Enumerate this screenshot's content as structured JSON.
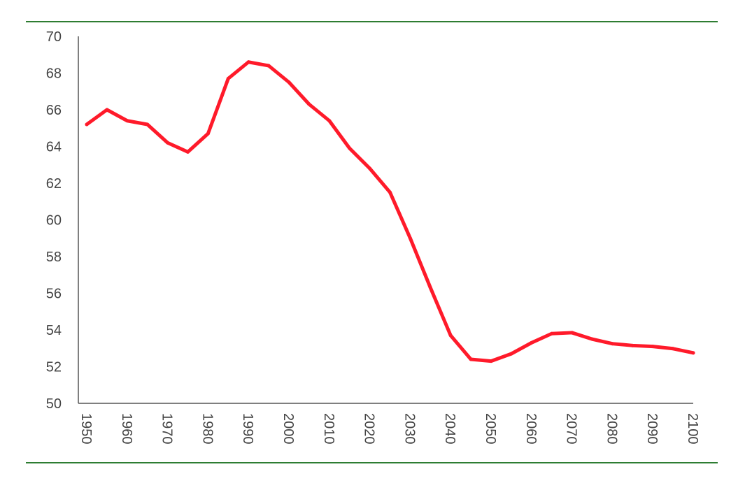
{
  "colors": {
    "rule": "#2e7d32",
    "axis": "#555555",
    "line": "#ff1a2a"
  },
  "chart_data": {
    "type": "line",
    "title": "",
    "xlabel": "",
    "ylabel": "",
    "grid": false,
    "legend": "none",
    "xlim": [
      1950,
      2100
    ],
    "ylim": [
      50,
      70
    ],
    "y_ticks": [
      "50",
      "52",
      "54",
      "56",
      "58",
      "60",
      "62",
      "64",
      "66",
      "68",
      "70"
    ],
    "x_ticks": [
      "1950",
      "1960",
      "1970",
      "1980",
      "1990",
      "2000",
      "2010",
      "2020",
      "2030",
      "2040",
      "2050",
      "2060",
      "2070",
      "2080",
      "2090",
      "2100"
    ],
    "x": [
      1950,
      1955,
      1960,
      1965,
      1970,
      1975,
      1980,
      1985,
      1990,
      1995,
      2000,
      2005,
      2010,
      2015,
      2020,
      2025,
      2030,
      2035,
      2040,
      2045,
      2050,
      2055,
      2060,
      2065,
      2070,
      2075,
      2080,
      2085,
      2090,
      2095,
      2100
    ],
    "series": [
      {
        "values": [
          65.2,
          66.0,
          65.4,
          65.2,
          64.2,
          63.7,
          64.7,
          67.7,
          68.6,
          68.4,
          67.5,
          66.3,
          65.4,
          63.9,
          62.8,
          61.5,
          59.0,
          56.3,
          53.7,
          52.4,
          52.3,
          52.7,
          53.3,
          53.8,
          53.85,
          53.5,
          53.25,
          53.15,
          53.1,
          52.98,
          52.75
        ]
      }
    ]
  }
}
